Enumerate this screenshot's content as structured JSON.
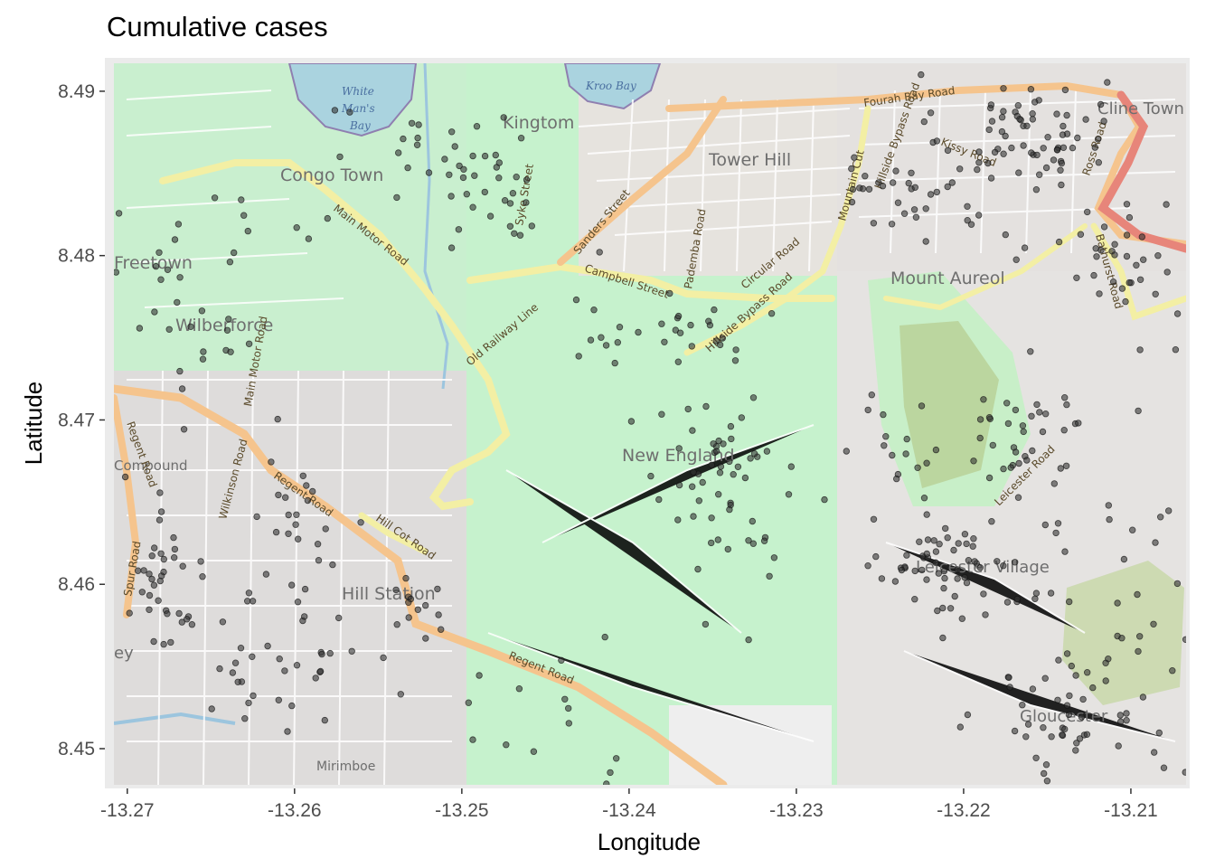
{
  "chart_data": {
    "type": "scatter",
    "title": "Cumulative cases",
    "xlabel": "Longitude",
    "ylabel": "Latitude",
    "xlim": [
      -13.2708,
      -13.2067
    ],
    "ylim": [
      8.4478,
      8.4917
    ],
    "x_ticks": [
      -13.27,
      -13.26,
      -13.25,
      -13.24,
      -13.23,
      -13.22,
      -13.21
    ],
    "x_tick_labels": [
      "-13.27",
      "-13.26",
      "-13.25",
      "-13.24",
      "-13.23",
      "-13.22",
      "-13.21"
    ],
    "y_ticks": [
      8.45,
      8.46,
      8.47,
      8.48,
      8.49
    ],
    "y_tick_labels": [
      "8.45",
      "8.46",
      "8.47",
      "8.48",
      "8.49"
    ],
    "grid": false,
    "basemap": "OpenStreetMap",
    "colors": {
      "point_fill": "#333333",
      "panel_background": "#ebebeb"
    }
  },
  "map_labels": {
    "places": [
      "Congo Town",
      "Kingtom",
      "Tower Hill",
      "Freetown",
      "Wilberforce",
      "Mount Aureol",
      "New England",
      "Compound",
      "Hill Station",
      "Leicester Village",
      "Mirimboe",
      "Gloucester",
      "Cline Town",
      "ey"
    ],
    "water": [
      "White",
      "Man's",
      "Bay",
      "Kroo Bay"
    ],
    "roads": [
      "Main Motor Road",
      "Syke Street",
      "Sanders Street",
      "Campbell Street",
      "Pademba Road",
      "Regent Road",
      "Circular Road",
      "Mountain Cut",
      "Fourah Bay Road",
      "Kissy Road",
      "Hillside Bypass Road",
      "Old Railway Line",
      "Hill Cot Road",
      "Leicester Road",
      "Spur Road",
      "Ross Road",
      "Main Motor Road",
      "Hillside Bypass Road",
      "Regent Road",
      "Regent Road",
      "Wilkinson Road",
      "Bathurst Road"
    ]
  }
}
